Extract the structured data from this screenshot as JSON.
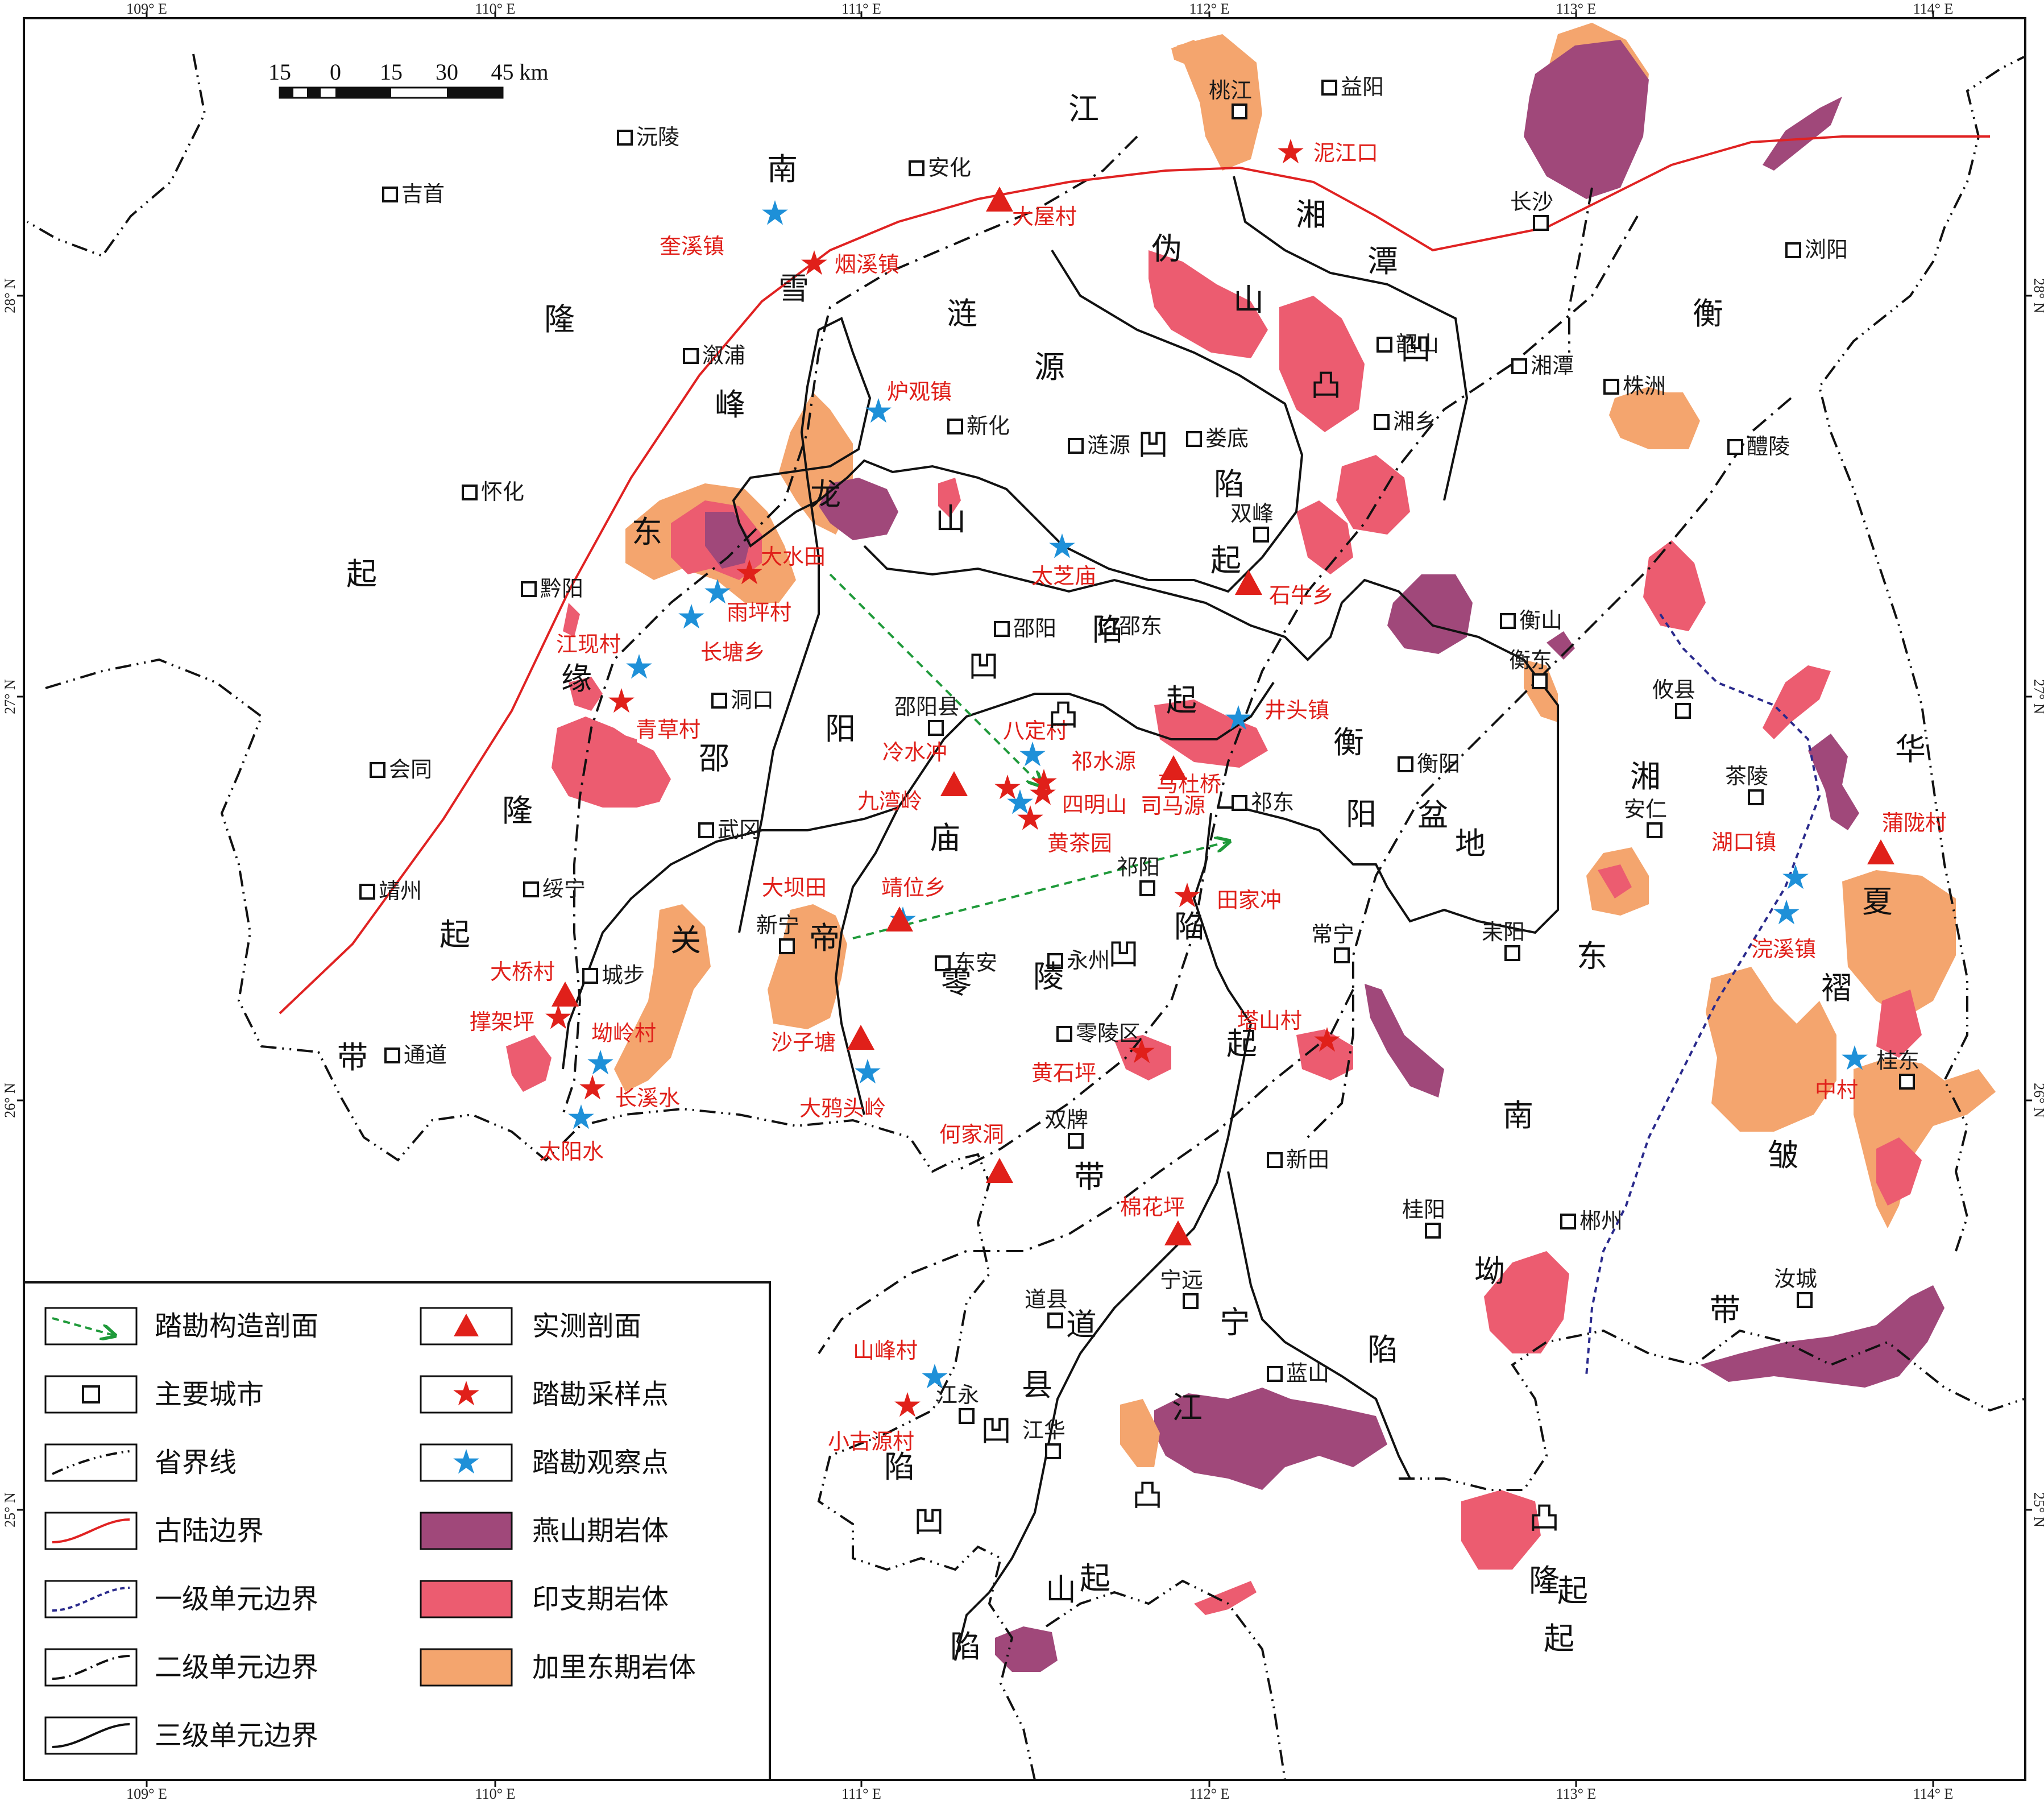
{
  "frame": {
    "top_lon": [
      "109° E",
      "110° E",
      "111° E",
      "112° E",
      "113° E",
      "114° E"
    ],
    "bottom_lon": [
      "109° E",
      "110° E",
      "111° E",
      "112° E",
      "113° E",
      "114° E"
    ],
    "left_lat": [
      "28° N",
      "27° N",
      "26° N",
      "25° N"
    ],
    "right_lat": [
      "28° N",
      "27° N",
      "26° N",
      "25° N"
    ]
  },
  "scale_bar": {
    "ticks": [
      "15",
      "0",
      "15",
      "30",
      "45 km"
    ]
  },
  "colors": {
    "yanshan": "#a0487a",
    "indosinian": "#ec5c70",
    "caledonian": "#f4a56e",
    "paleo_boundary": "#e02222",
    "level1_boundary": "#2a2a8c",
    "sample_red": "#e0201a",
    "observe_blue": "#1e90d8",
    "profile_green": "#1f9a3a"
  },
  "cities": [
    "吉首",
    "沅陵",
    "安化",
    "桃江",
    "益阳",
    "长沙",
    "浏阳",
    "溆浦",
    "韶山",
    "湘潭",
    "株洲",
    "新化",
    "涟源",
    "娄底",
    "湘乡",
    "醴陵",
    "怀化",
    "双峰",
    "黔阳",
    "衡山",
    "邵阳",
    "邵东",
    "衡东",
    "洞口",
    "邵阳县",
    "攸县",
    "会同",
    "武冈",
    "衡阳",
    "茶陵",
    "祁东",
    "安仁",
    "靖州",
    "绥宁",
    "祁阳",
    "新宁",
    "常宁",
    "耒阳",
    "城步",
    "东安",
    "永州",
    "通道",
    "零陵区",
    "双牌",
    "桂东",
    "新田",
    "桂阳",
    "郴州",
    "宁远",
    "汝城",
    "道县",
    "蓝山",
    "江永",
    "江华"
  ],
  "sites": [
    "泥江口",
    "大屋村",
    "奎溪镇",
    "烟溪镇",
    "炉观镇",
    "大水田",
    "太芝庙",
    "石牛乡",
    "雨坪村",
    "长塘乡",
    "江现村",
    "井头镇",
    "青草村",
    "八定村",
    "冷水冲",
    "祁水源",
    "马杜桥",
    "九湾岭",
    "四明山",
    "司马源",
    "黄茶园",
    "大坝田",
    "靖位乡",
    "田家冲",
    "湖口镇",
    "蒲陇村",
    "浣溪镇",
    "大桥村",
    "撑架坪",
    "坳岭村",
    "长溪水",
    "太阳水",
    "沙子塘",
    "大鸦头岭",
    "塔山村",
    "黄石坪",
    "何家洞",
    "中村",
    "棉花坪",
    "山峰村",
    "小古源村"
  ],
  "units": [
    "江",
    "南",
    "湘",
    "潭",
    "伪",
    "山",
    "凸",
    "雪",
    "涟",
    "源",
    "凹",
    "衡",
    "峰",
    "龙",
    "山",
    "凹",
    "陷",
    "起",
    "东",
    "起",
    "隆",
    "缘",
    "阳",
    "凹",
    "陷",
    "凸",
    "起",
    "衡",
    "阳",
    "盆",
    "地",
    "湘",
    "华",
    "邵",
    "隆",
    "庙",
    "夏",
    "关",
    "帝",
    "零",
    "陵",
    "凹",
    "陷",
    "东",
    "褶",
    "起",
    "带",
    "起",
    "南",
    "皱",
    "带",
    "带",
    "坳",
    "道",
    "宁",
    "陷",
    "县",
    "江",
    "凹",
    "凸",
    "陷",
    "起",
    "隆",
    "凸",
    "起",
    "凹",
    "山",
    "陷",
    "起"
  ],
  "legend": {
    "left": [
      "踏勘构造剖面",
      "主要城市",
      "省界线",
      "古陆边界",
      "一级单元边界",
      "二级单元边界",
      "三级单元边界"
    ],
    "right": [
      "实测剖面",
      "踏勘采样点",
      "踏勘观察点",
      "燕山期岩体",
      "印支期岩体",
      "加里东期岩体"
    ]
  }
}
